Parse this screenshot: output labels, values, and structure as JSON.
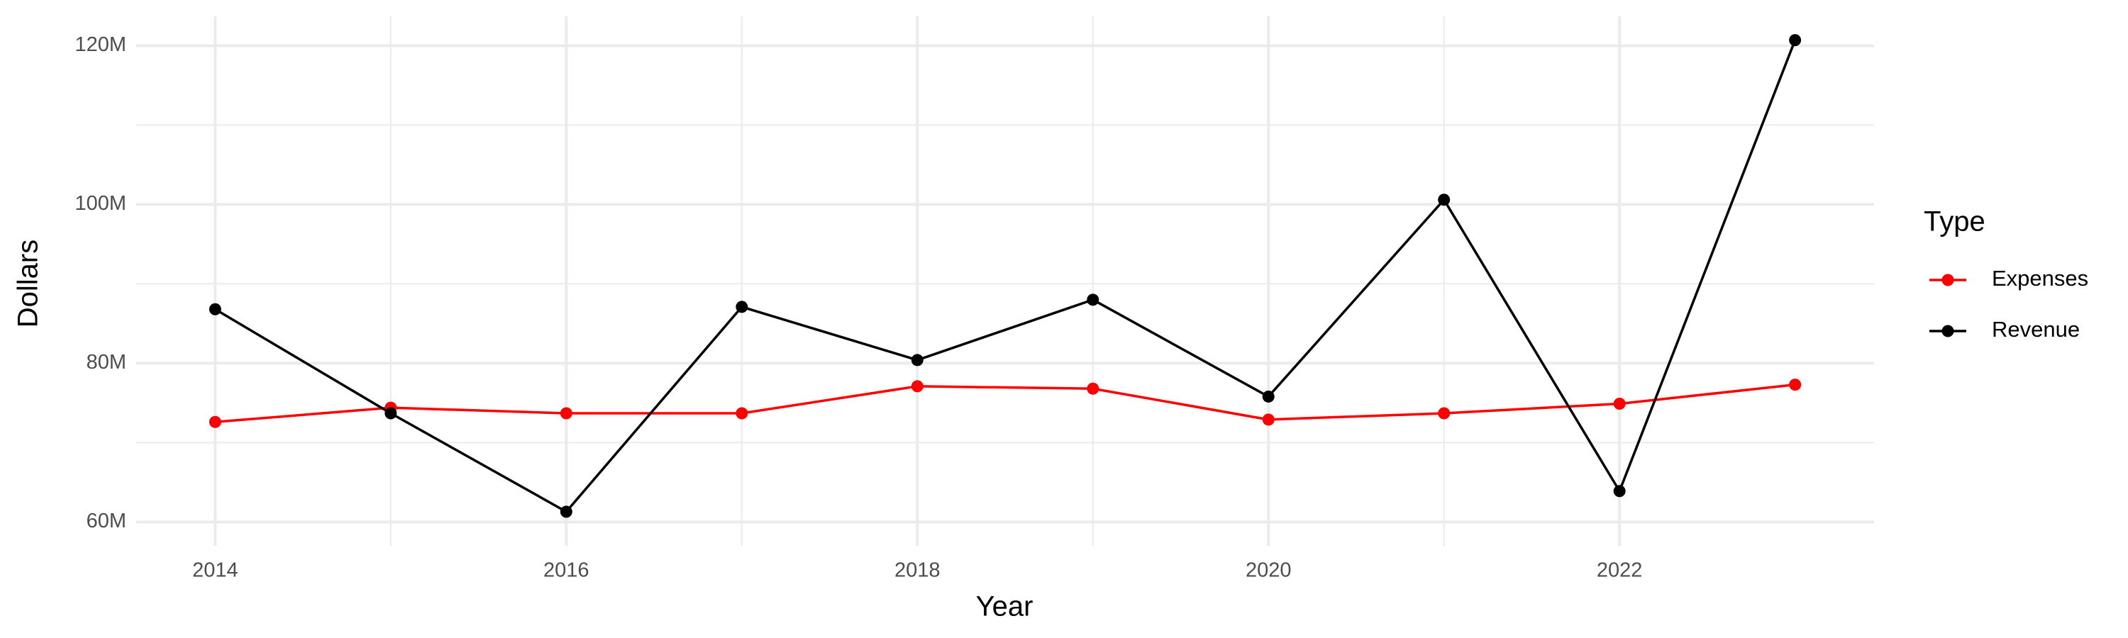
{
  "chart_data": {
    "type": "line",
    "x_label": "Year",
    "y_label": "Dollars",
    "x": [
      2014,
      2015,
      2016,
      2017,
      2018,
      2019,
      2020,
      2021,
      2022,
      2023
    ],
    "series": [
      {
        "name": "Expenses",
        "color": "#ff0000",
        "values": [
          72600000,
          74400000,
          73700000,
          73700000,
          77100000,
          76800000,
          72900000,
          73700000,
          74900000,
          77300000
        ]
      },
      {
        "name": "Revenue",
        "color": "#000000",
        "values": [
          86800000,
          73700000,
          61300000,
          87100000,
          80400000,
          88000000,
          75800000,
          100600000,
          63900000,
          120700000
        ]
      }
    ],
    "xlim": [
      2013.55,
      2023.45
    ],
    "xticks": [
      2014,
      2016,
      2018,
      2020,
      2022
    ],
    "ylim": [
      57000000,
      123700000
    ],
    "yticks": [
      {
        "value": 60000000,
        "label": "60M"
      },
      {
        "value": 80000000,
        "label": "80M"
      },
      {
        "value": 100000000,
        "label": "100M"
      },
      {
        "value": 120000000,
        "label": "120M"
      }
    ],
    "grid": true,
    "legend_title": "Type",
    "legend_position": "right"
  }
}
